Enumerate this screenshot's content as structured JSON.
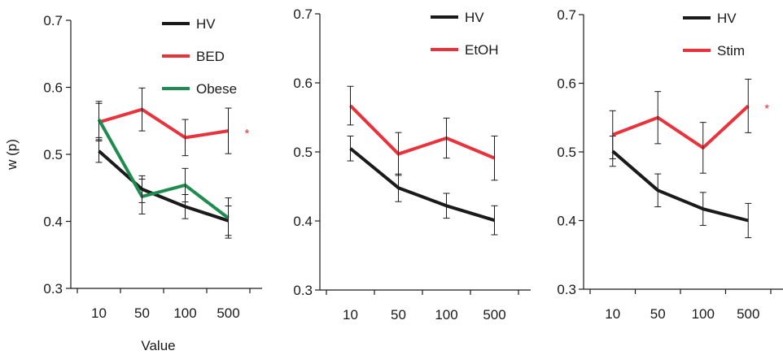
{
  "chart_data": [
    {
      "type": "line",
      "title": "",
      "xlabel": "Value",
      "ylabel": "w (p)",
      "categories": [
        "10",
        "50",
        "100",
        "500"
      ],
      "ylim": [
        0.3,
        0.7
      ],
      "yticks": [
        "0.3",
        "0.4",
        "0.5",
        "0.6",
        "0.7"
      ],
      "grid": false,
      "legend_position": "top-right",
      "series": [
        {
          "name": "HV",
          "color": "#1a1a1a",
          "values": [
            0.505,
            0.448,
            0.422,
            0.401
          ],
          "errors": [
            0.017,
            0.02,
            0.018,
            0.022
          ]
        },
        {
          "name": "BED",
          "color": "#e8323c",
          "values": [
            0.548,
            0.567,
            0.525,
            0.535
          ],
          "errors": [
            0.028,
            0.032,
            0.027,
            0.034
          ]
        },
        {
          "name": "Obese",
          "color": "#1e8c4e",
          "values": [
            0.552,
            0.437,
            0.454,
            0.405
          ],
          "errors": [
            0.027,
            0.026,
            0.025,
            0.03
          ]
        }
      ],
      "annotations": [
        {
          "text": "*",
          "series": "BED",
          "category": "500",
          "color": "#e8323c"
        }
      ]
    },
    {
      "type": "line",
      "title": "",
      "xlabel": "",
      "ylabel": "",
      "categories": [
        "10",
        "50",
        "100",
        "500"
      ],
      "ylim": [
        0.3,
        0.7
      ],
      "yticks": [
        "0.3",
        "0.4",
        "0.5",
        "0.6",
        "0.7"
      ],
      "grid": false,
      "legend_position": "top-right",
      "series": [
        {
          "name": "HV",
          "color": "#1a1a1a",
          "values": [
            0.505,
            0.448,
            0.422,
            0.401
          ],
          "errors": [
            0.018,
            0.02,
            0.018,
            0.021
          ]
        },
        {
          "name": "EtOH",
          "color": "#e8323c",
          "values": [
            0.567,
            0.497,
            0.52,
            0.491
          ],
          "errors": [
            0.028,
            0.031,
            0.029,
            0.032
          ]
        }
      ],
      "annotations": []
    },
    {
      "type": "line",
      "title": "",
      "xlabel": "",
      "ylabel": "",
      "categories": [
        "10",
        "50",
        "100",
        "500"
      ],
      "ylim": [
        0.3,
        0.7
      ],
      "yticks": [
        "0.3",
        "0.4",
        "0.5",
        "0.6",
        "0.7"
      ],
      "grid": false,
      "legend_position": "top-right",
      "series": [
        {
          "name": "HV",
          "color": "#1a1a1a",
          "values": [
            0.501,
            0.444,
            0.417,
            0.4
          ],
          "errors": [
            0.022,
            0.024,
            0.024,
            0.025
          ]
        },
        {
          "name": "Stim",
          "color": "#e8323c",
          "values": [
            0.525,
            0.55,
            0.506,
            0.567
          ],
          "errors": [
            0.035,
            0.038,
            0.037,
            0.039
          ]
        }
      ],
      "annotations": [
        {
          "text": "*",
          "series": "Stim",
          "category": "500",
          "color": "#e8323c"
        }
      ]
    }
  ]
}
